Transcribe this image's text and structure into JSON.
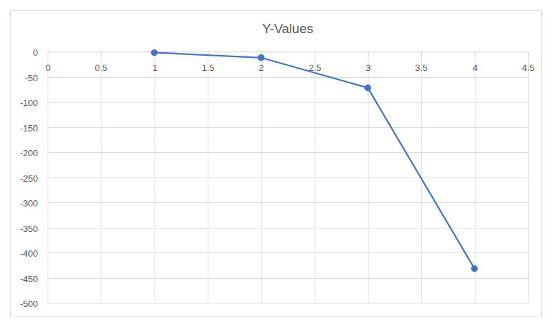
{
  "chart_data": {
    "type": "line",
    "title": "Y-Values",
    "x": [
      1,
      2,
      3,
      4
    ],
    "values": [
      -2,
      -12,
      -72,
      -432
    ],
    "color": "#4472c4",
    "marker": "circle",
    "xlim": [
      0,
      4.5
    ],
    "xticks": [
      0,
      0.5,
      1,
      1.5,
      2,
      2.5,
      3,
      3.5,
      4,
      4.5
    ],
    "ylim": [
      -500,
      0
    ],
    "yticks": [
      0,
      -50,
      -100,
      -150,
      -200,
      -250,
      -300,
      -350,
      -400,
      -450,
      -500
    ],
    "grid": true
  }
}
